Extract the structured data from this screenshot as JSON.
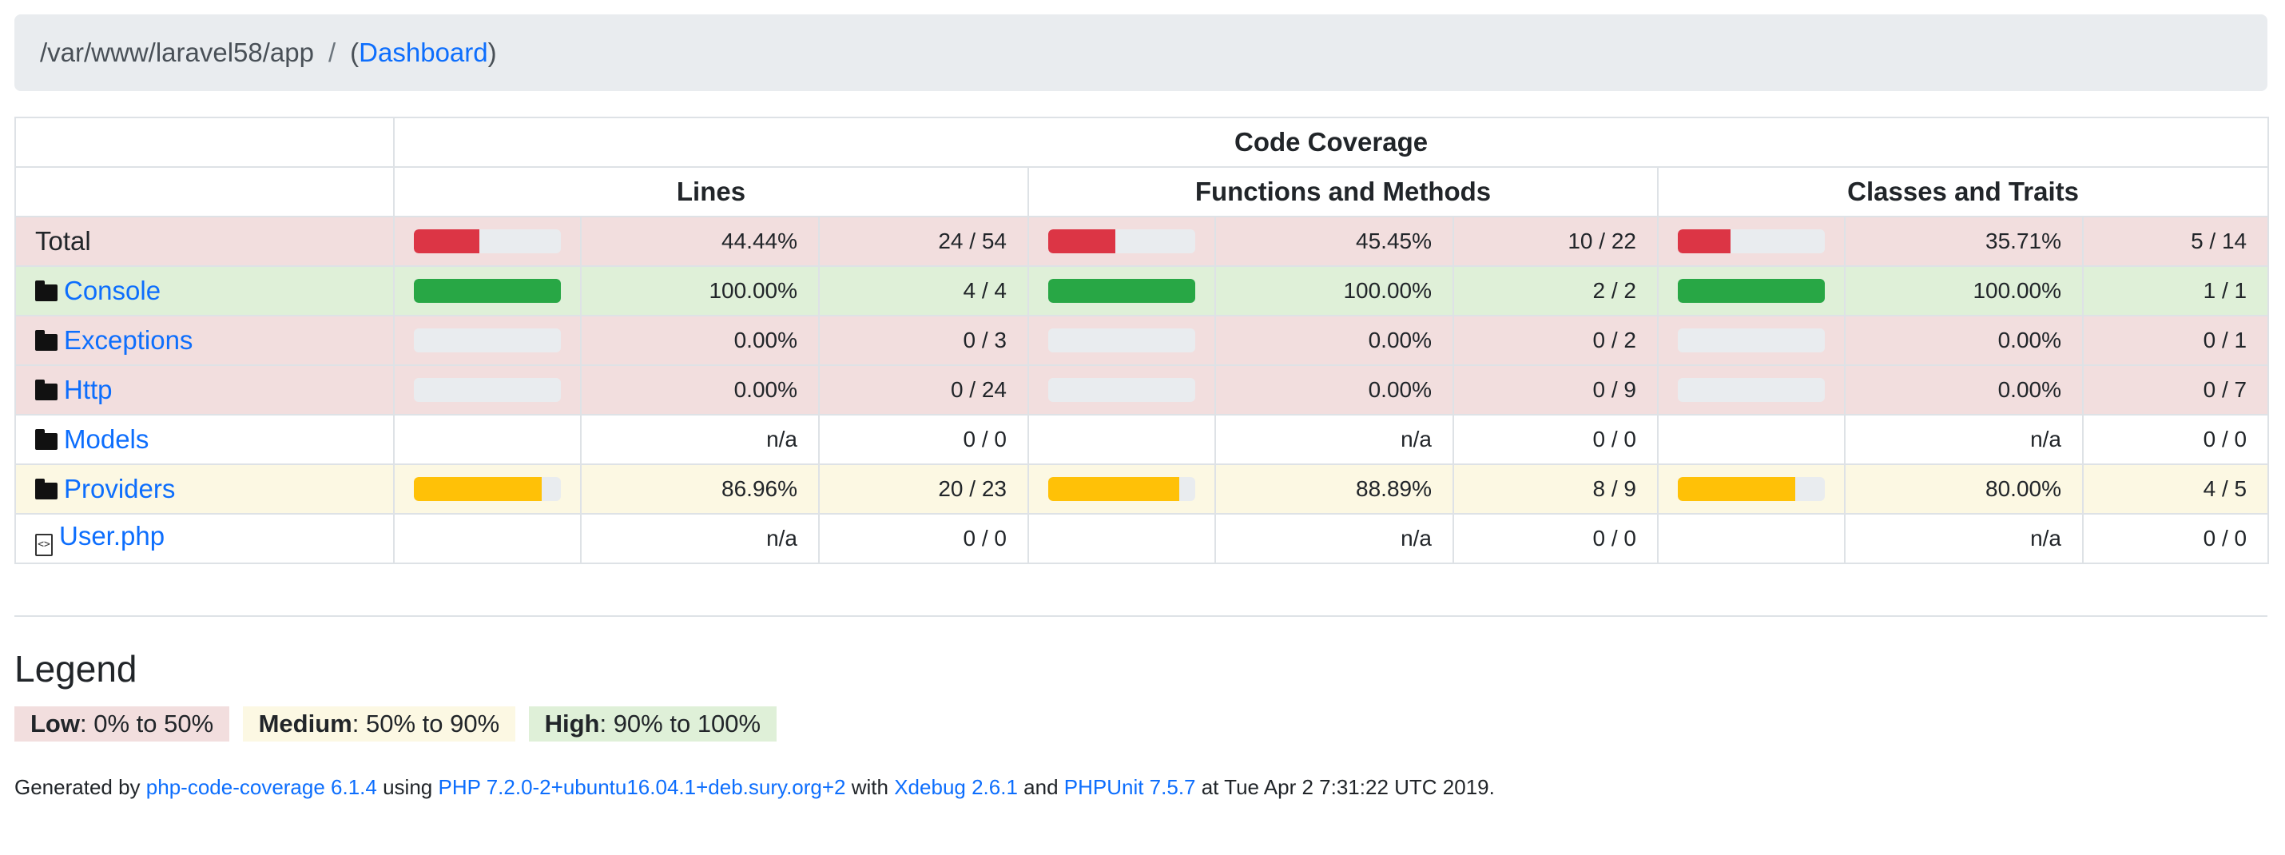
{
  "breadcrumb": {
    "path": "/var/www/laravel58/app",
    "separator": "/",
    "dashboard_open": "(",
    "dashboard_label": "Dashboard",
    "dashboard_close": ")"
  },
  "table": {
    "group_header": "Code Coverage",
    "column_headers": [
      "Lines",
      "Functions and Methods",
      "Classes and Traits"
    ],
    "rows": [
      {
        "name": "Total",
        "kind": "total",
        "level": "low",
        "lines": {
          "pct": "44.44%",
          "ratio": "24 / 54",
          "fill": 44.44,
          "level": "low"
        },
        "functions": {
          "pct": "45.45%",
          "ratio": "10 / 22",
          "fill": 45.45,
          "level": "low"
        },
        "classes": {
          "pct": "35.71%",
          "ratio": "5 / 14",
          "fill": 35.71,
          "level": "low"
        }
      },
      {
        "name": "Console",
        "kind": "folder",
        "level": "high",
        "lines": {
          "pct": "100.00%",
          "ratio": "4 / 4",
          "fill": 100,
          "level": "high"
        },
        "functions": {
          "pct": "100.00%",
          "ratio": "2 / 2",
          "fill": 100,
          "level": "high"
        },
        "classes": {
          "pct": "100.00%",
          "ratio": "1 / 1",
          "fill": 100,
          "level": "high"
        }
      },
      {
        "name": "Exceptions",
        "kind": "folder",
        "level": "low",
        "lines": {
          "pct": "0.00%",
          "ratio": "0 / 3",
          "fill": 0,
          "level": "low"
        },
        "functions": {
          "pct": "0.00%",
          "ratio": "0 / 2",
          "fill": 0,
          "level": "low"
        },
        "classes": {
          "pct": "0.00%",
          "ratio": "0 / 1",
          "fill": 0,
          "level": "low"
        }
      },
      {
        "name": "Http",
        "kind": "folder",
        "level": "low",
        "lines": {
          "pct": "0.00%",
          "ratio": "0 / 24",
          "fill": 0,
          "level": "low"
        },
        "functions": {
          "pct": "0.00%",
          "ratio": "0 / 9",
          "fill": 0,
          "level": "low"
        },
        "classes": {
          "pct": "0.00%",
          "ratio": "0 / 7",
          "fill": 0,
          "level": "low"
        }
      },
      {
        "name": "Models",
        "kind": "folder",
        "level": "none",
        "lines": {
          "pct": "n/a",
          "ratio": "0 / 0",
          "fill": null,
          "level": "none"
        },
        "functions": {
          "pct": "n/a",
          "ratio": "0 / 0",
          "fill": null,
          "level": "none"
        },
        "classes": {
          "pct": "n/a",
          "ratio": "0 / 0",
          "fill": null,
          "level": "none"
        }
      },
      {
        "name": "Providers",
        "kind": "folder",
        "level": "medium",
        "lines": {
          "pct": "86.96%",
          "ratio": "20 / 23",
          "fill": 86.96,
          "level": "medium"
        },
        "functions": {
          "pct": "88.89%",
          "ratio": "8 / 9",
          "fill": 88.89,
          "level": "medium"
        },
        "classes": {
          "pct": "80.00%",
          "ratio": "4 / 5",
          "fill": 80.0,
          "level": "medium"
        }
      },
      {
        "name": "User.php",
        "kind": "file",
        "level": "none",
        "lines": {
          "pct": "n/a",
          "ratio": "0 / 0",
          "fill": null,
          "level": "none"
        },
        "functions": {
          "pct": "n/a",
          "ratio": "0 / 0",
          "fill": null,
          "level": "none"
        },
        "classes": {
          "pct": "n/a",
          "ratio": "0 / 0",
          "fill": null,
          "level": "none"
        }
      }
    ]
  },
  "legend": {
    "title": "Legend",
    "low_label": "Low",
    "low_range": ": 0% to 50%",
    "medium_label": "Medium",
    "medium_range": ": 50% to 90%",
    "high_label": "High",
    "high_range": ": 90% to 100%"
  },
  "footer": {
    "generated_by": "Generated by ",
    "tool_link": "php-code-coverage 6.1.4",
    "using": " using ",
    "php_link": "PHP 7.2.0-2+ubuntu16.04.1+deb.sury.org+2",
    "with": " with ",
    "xdebug_link": "Xdebug 2.6.1",
    "and": " and ",
    "phpunit_link": "PHPUnit 7.5.7",
    "timestamp": " at Tue Apr 2 7:31:22 UTC 2019."
  },
  "colors": {
    "low_row": "#f2dede",
    "medium_row": "#fcf8e3",
    "high_row": "#dff0d8",
    "low_bar": "#dc3545",
    "medium_bar": "#ffc107",
    "high_bar": "#28a745",
    "link": "#0d6efd"
  },
  "icons": {
    "folder": "folder-icon",
    "file": "file-code-icon"
  }
}
